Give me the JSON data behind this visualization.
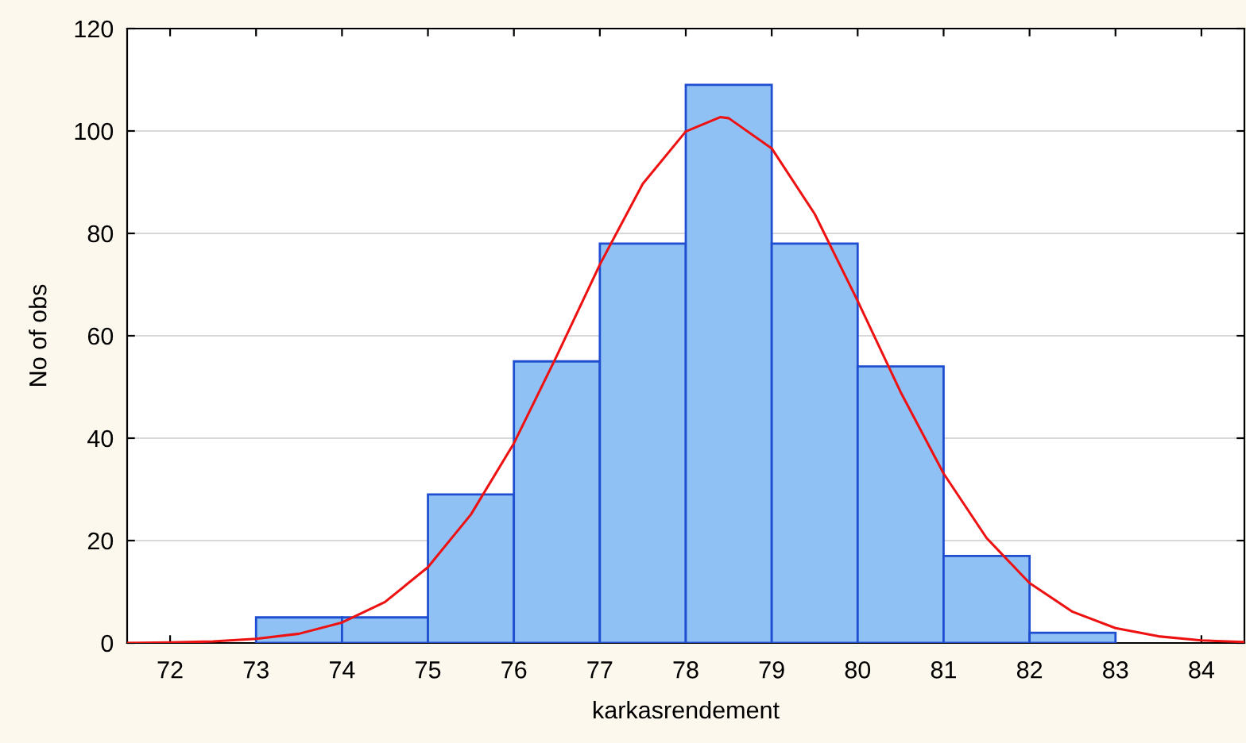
{
  "chart_data": {
    "type": "histogram",
    "xlabel": "karkasrendement",
    "ylabel": "No of obs",
    "bins": [
      73,
      74,
      75,
      76,
      77,
      78,
      79,
      80,
      81,
      82,
      83
    ],
    "values": [
      5,
      5,
      29,
      55,
      78,
      109,
      78,
      54,
      17,
      2
    ],
    "color": "#8fc1f5",
    "series": [
      {
        "type": "line",
        "color": "#ee1111",
        "x": [
          71.5,
          72,
          72.5,
          73,
          73.5,
          74,
          74.5,
          75,
          75.5,
          76,
          76.5,
          77,
          77.5,
          78,
          78.4,
          78.5,
          79,
          79.5,
          80,
          80.5,
          81,
          81.5,
          82,
          82.5,
          83,
          83.5,
          84,
          84.5
        ],
        "values": [
          0,
          0.1,
          0.3,
          0.8,
          1.8,
          4.0,
          8.0,
          14.8,
          25.1,
          39.0,
          56.1,
          73.9,
          89.7,
          99.9,
          102.7,
          102.5,
          96.6,
          83.8,
          66.8,
          49.0,
          33.1,
          20.5,
          11.7,
          6.1,
          2.9,
          1.3,
          0.5,
          0.2
        ]
      }
    ],
    "xlim": [
      71.5,
      84.5
    ],
    "xticks": [
      72,
      73,
      74,
      75,
      76,
      77,
      78,
      79,
      80,
      81,
      82,
      83,
      84
    ],
    "ylim": [
      0,
      120
    ],
    "yticks": [
      0,
      20,
      40,
      60,
      80,
      100,
      120
    ],
    "grid": "y",
    "marker": "none",
    "line_style": "solid"
  }
}
